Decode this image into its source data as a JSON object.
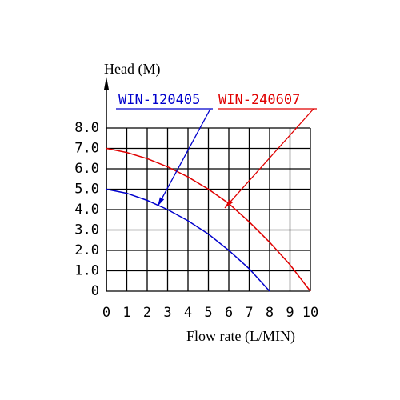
{
  "chart_data": {
    "type": "line",
    "y_label": "Head  (M)",
    "x_label": "Flow rate  (L/MIN)",
    "x": [
      0,
      1,
      2,
      3,
      4,
      5,
      6,
      7,
      8,
      9,
      10
    ],
    "series": [
      {
        "name": "WIN-120405",
        "color": "#0000cc",
        "values": [
          5.0,
          4.8,
          4.45,
          4.0,
          3.45,
          2.8,
          2.0,
          1.1,
          0,
          null,
          null
        ]
      },
      {
        "name": "WIN-240607",
        "color": "#e00000",
        "values": [
          7.0,
          6.8,
          6.5,
          6.1,
          5.6,
          5.0,
          4.3,
          3.4,
          2.4,
          1.3,
          0
        ]
      }
    ],
    "xlim": [
      0,
      10
    ],
    "ylim": [
      0,
      8
    ],
    "xticks": [
      0,
      1,
      2,
      3,
      4,
      5,
      6,
      7,
      8,
      9,
      10
    ],
    "yticks": [
      0,
      {
        "value": 1,
        "label": "1.0"
      },
      {
        "value": 2,
        "label": "2.0"
      },
      {
        "value": 3,
        "label": "3.0"
      },
      {
        "value": 4,
        "label": "4.0"
      },
      {
        "value": 5,
        "label": "5.0"
      },
      {
        "value": 6,
        "label": "6.0"
      },
      {
        "value": 7,
        "label": "7.0"
      },
      {
        "value": 8,
        "label": "8.0"
      }
    ],
    "grid": true
  }
}
